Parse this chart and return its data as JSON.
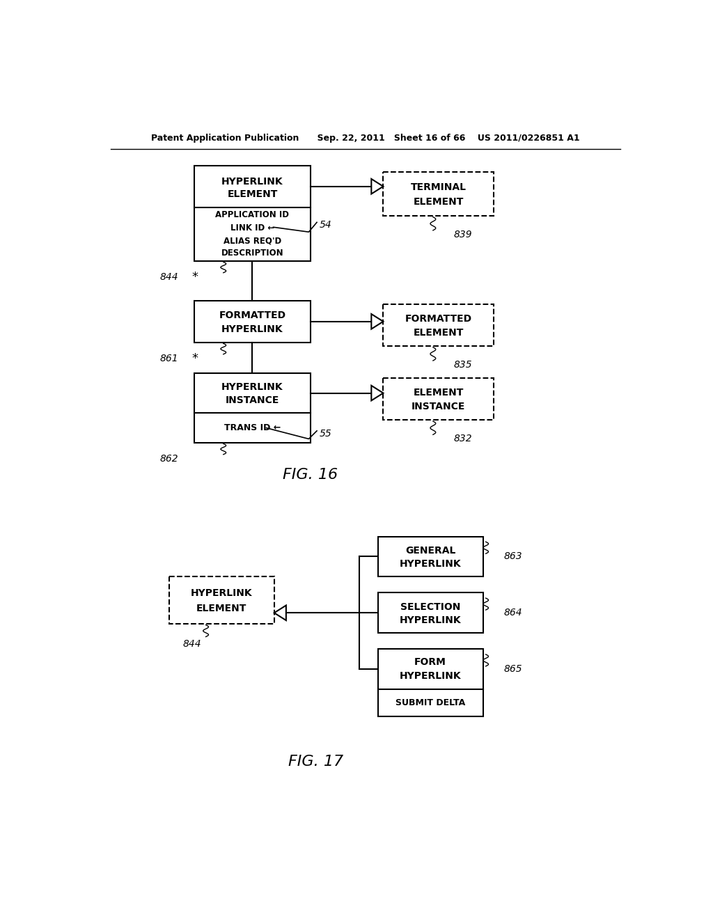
{
  "bg_color": "#ffffff",
  "fig16_title": "FIG. 16",
  "fig17_title": "FIG. 17",
  "header": "Patent Application Publication      Sep. 22, 2011   Sheet 16 of 66    US 2011/0226851 A1"
}
